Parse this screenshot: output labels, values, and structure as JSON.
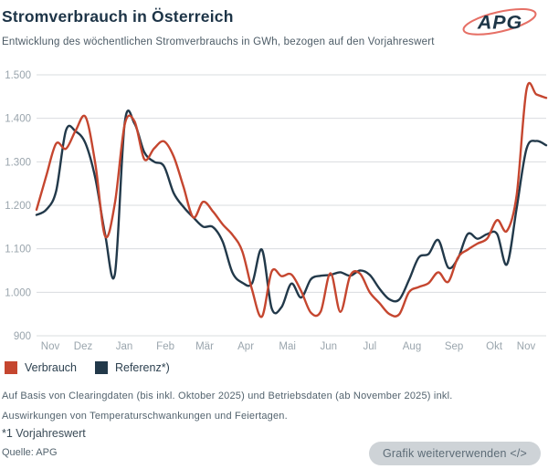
{
  "header": {
    "title": "Stromverbrauch in Österreich",
    "subtitle": "Entwicklung des wöchentlichen Stromverbrauchs in GWh, bezogen auf den Vorjahreswert",
    "logo_text": "APG"
  },
  "colors": {
    "verbrauch": "#c5462f",
    "referenz": "#22394a",
    "grid": "#d9dcdf",
    "axis_text": "#9aa5ad",
    "logo_navy": "#1d3647",
    "logo_red": "#e2574b"
  },
  "chart_data": {
    "type": "line",
    "title": "Stromverbrauch in Österreich",
    "subtitle": "Entwicklung des wöchentlichen Stromverbrauchs in GWh, bezogen auf den Vorjahreswert",
    "unit": "GWh",
    "x_unit": "Kalenderwochen November bis November",
    "ylim": [
      900,
      1500
    ],
    "yticks": [
      900,
      1000,
      1100,
      1200,
      1300,
      1400,
      1500
    ],
    "grid": true,
    "legend_position": "bottom-left",
    "month_ticks": [
      {
        "label": "Nov",
        "week": 1.4
      },
      {
        "label": "Dez",
        "week": 4.75
      },
      {
        "label": "Jan",
        "week": 8.95
      },
      {
        "label": "Feb",
        "week": 13.15
      },
      {
        "label": "Mär",
        "week": 17.15
      },
      {
        "label": "Apr",
        "week": 21.35
      },
      {
        "label": "Mai",
        "week": 25.6
      },
      {
        "label": "Jun",
        "week": 29.8
      },
      {
        "label": "Jul",
        "week": 34.0
      },
      {
        "label": "Aug",
        "week": 38.3
      },
      {
        "label": "Sep",
        "week": 42.6
      },
      {
        "label": "Okt",
        "week": 46.7
      },
      {
        "label": "Nov",
        "week": 49.95
      }
    ],
    "series": [
      {
        "name": "Verbrauch",
        "color": "#c5462f",
        "values": [
          1190,
          1268,
          1342,
          1330,
          1372,
          1403,
          1295,
          1129,
          1205,
          1386,
          1393,
          1306,
          1331,
          1347,
          1312,
          1242,
          1172,
          1208,
          1186,
          1156,
          1132,
          1094,
          1005,
          944,
          1048,
          1037,
          1041,
          1003,
          953,
          956,
          1044,
          955,
          1038,
          1043,
          1000,
          975,
          950,
          949,
          1000,
          1012,
          1021,
          1046,
          1024,
          1080,
          1098,
          1112,
          1124,
          1166,
          1141,
          1225,
          1466,
          1455,
          1447
        ]
      },
      {
        "name": "Referenz*)",
        "color": "#22394a",
        "values": [
          1178,
          1190,
          1233,
          1372,
          1370,
          1342,
          1262,
          1133,
          1042,
          1390,
          1388,
          1322,
          1300,
          1290,
          1228,
          1196,
          1172,
          1151,
          1150,
          1116,
          1045,
          1022,
          1021,
          1098,
          963,
          966,
          1020,
          988,
          1030,
          1038,
          1040,
          1046,
          1038,
          1050,
          1040,
          1008,
          984,
          983,
          1028,
          1080,
          1088,
          1120,
          1057,
          1078,
          1134,
          1123,
          1134,
          1134,
          1064,
          1195,
          1330,
          1348,
          1338
        ]
      }
    ]
  },
  "legend": {
    "items": [
      {
        "label": "Verbrauch",
        "color": "#c5462f"
      },
      {
        "label": "Referenz*)",
        "color": "#22394a"
      }
    ]
  },
  "footnotes": {
    "line1": "Auf Basis von Clearingdaten (bis inkl. Oktober 2025) und Betriebsdaten (ab November 2025) inkl.",
    "line2": "Auswirkungen von Temperaturschwankungen und Feiertagen.",
    "asterisk": "*1 Vorjahreswert",
    "source": "Quelle: APG"
  },
  "actions": {
    "reuse_button": "Grafik weiterverwenden </>"
  }
}
